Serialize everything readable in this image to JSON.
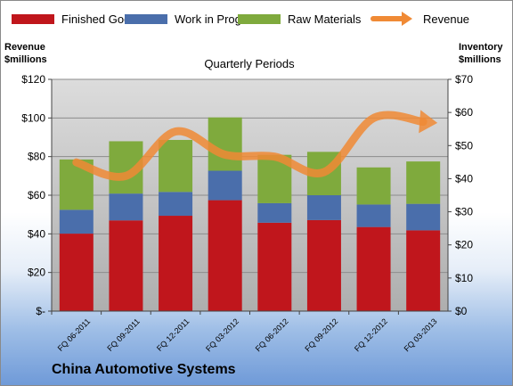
{
  "company": "China Automotive Systems",
  "chart_data": {
    "type": "bar",
    "stacked": true,
    "title": "Quarterly Periods",
    "left_axis_label": [
      "Revenue",
      "$millions"
    ],
    "right_axis_label": [
      "Inventory",
      "$millions"
    ],
    "categories": [
      "FQ 06-2011",
      "FQ 09-2011",
      "FQ 12-2011",
      "FQ 03-2012",
      "FQ 06-2012",
      "FQ 09-2012",
      "FQ 12-2012",
      "FQ 03-2013"
    ],
    "left_ticks": [
      "$-",
      "$20",
      "$40",
      "$60",
      "$80",
      "$100",
      "$120"
    ],
    "right_ticks": [
      "$0",
      "$10",
      "$20",
      "$30",
      "$40",
      "$50",
      "$60",
      "$70"
    ],
    "ylim_left": [
      0,
      120
    ],
    "ylim_right": [
      0,
      70
    ],
    "grid": true,
    "legend_position": "top",
    "series": [
      {
        "name": "Finished Goods",
        "color": "#c0161c",
        "values": [
          23.4,
          27.4,
          28.8,
          33.5,
          26.7,
          27.5,
          25.4,
          24.4
        ]
      },
      {
        "name": "Work in Progress",
        "color": "#4a6eab",
        "values": [
          7.2,
          8.1,
          7.2,
          8.9,
          5.9,
          7.5,
          6.8,
          8.0
        ]
      },
      {
        "name": "Raw Materials",
        "color": "#7faa3d",
        "values": [
          15.2,
          15.8,
          15.7,
          16.1,
          14.6,
          13.1,
          11.2,
          12.8
        ]
      }
    ],
    "line_series": {
      "name": "Revenue",
      "color": "#f08a35",
      "values": [
        77,
        70,
        93,
        81,
        80,
        72,
        100,
        98
      ]
    }
  }
}
